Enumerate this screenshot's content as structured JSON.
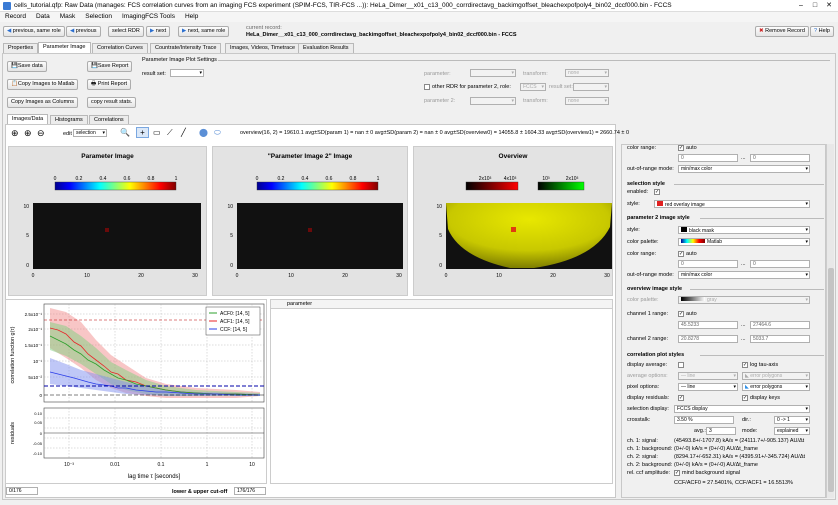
{
  "window": {
    "title": "cells_tutorial.qfp: Raw Data (manages: FCS correlation curves from an imaging FCS experiment (SPIM-FCS, TIR-FCS ...)): HeLa_Dimer__x01_c13_000_corrdirectavg_backimgoffset_bleachexpofpoly4_bin02_dccf000.bin - FCCS"
  },
  "menu": [
    "Record",
    "Data",
    "Mask",
    "Selection",
    "ImagingFCS Tools",
    "Help"
  ],
  "toolbar": {
    "prev_same_role": "previous, same role",
    "previous": "previous",
    "select_rdr": "select RDR",
    "next": "next",
    "next_same_role": "next, same role",
    "current_label": "current record:",
    "current_name": "HeLa_Dimer__x01_c13_000_corrdirectavg_backimgoffset_bleachexpofpoly4_bin02_dccf000.bin - FCCS",
    "remove": "Remove Record",
    "help": "Help"
  },
  "main_tabs": [
    "Properties",
    "Parameter Image",
    "Correlation Curves",
    "Countrate/Intensity Trace",
    "Images, Videos, Timetrace",
    "Evaluation Results"
  ],
  "left_buttons": {
    "save_data": "Save data",
    "save_report": "Save Report",
    "copy_matlab": "Copy Images to Matlab",
    "print_report": "Print Report",
    "copy_columns": "Copy Images as Columns",
    "copy_stats": "copy result stats."
  },
  "plot_settings": {
    "title": "Parameter Image Plot Settings",
    "result_set": "result set:",
    "parameter": "parameter:",
    "transform": "transform:",
    "transform_val": "none",
    "other_rdr": "other RDR for parameter 2, role:",
    "role_val": "FCCS",
    "result_set2": "result set:",
    "parameter2": "parameter 2:",
    "transform2": "transform:",
    "transform2_val": "none"
  },
  "sub_tabs": [
    "Images/Data",
    "Histograms",
    "Correlations"
  ],
  "zoom": {
    "edit_label": "edit",
    "edit_val": "selection"
  },
  "stats_line": "overview(16, 2) = 19610.1  avg±SD(param 1) = nan ± 0  avg±SD(param 2) = nan ± 0     avg±SD(overview0) = 14055.8 ± 1604.33  avg±SD(overview1) = 2660.74 ± 0",
  "images": {
    "p1": {
      "title": "Parameter Image",
      "ticks": [
        "0",
        "0.2",
        "0.4",
        "0.6",
        "0.8",
        "1"
      ]
    },
    "p2": {
      "title": "\"Parameter Image 2\" Image",
      "ticks": [
        "0",
        "0.2",
        "0.4",
        "0.6",
        "0.8",
        "1"
      ]
    },
    "ov": {
      "title": "Overview",
      "bar1": [
        "2x10³",
        "4x10³"
      ],
      "bar2": [
        "10³",
        "2x10³"
      ]
    },
    "xticks": [
      "0",
      "10",
      "20",
      "30"
    ],
    "yticks": [
      "10",
      "5",
      "0"
    ]
  },
  "right_panel": {
    "color_range": "color range:",
    "auto": "auto",
    "cr_min": "0",
    "cr_max": "0",
    "oor_mode": "out-of-range mode:",
    "oor_val": "min/max color",
    "sel_style": "selection style",
    "enabled": "enabled:",
    "style": "style:",
    "style_val": "red overlay image",
    "p2_style": "parameter 2 image style",
    "p2_style_val": "black mask",
    "palette": "color palette:",
    "palette_val": "Matlab",
    "p2_cr": "color range:",
    "p2_auto": "auto",
    "p2_min": "0",
    "p2_max": "0",
    "p2_oor": "out-of-range mode:",
    "p2_oor_val": "min/max color",
    "ov_style": "overview image style",
    "ov_palette": "color palette:",
    "ov_palette_val": "gray",
    "ch1": "channel 1 range:",
    "ch1_auto": "auto",
    "ch1_min": "45.5233",
    "ch1_max": "27464.6",
    "ch2": "channel 2 range:",
    "ch2_min": "20.8278",
    "ch2_max": "5033.7",
    "corr_style": "correlation plot styles",
    "disp_avg": "display average:",
    "log_tau": "log tau-axis",
    "avg_opts": "average options:",
    "avg_line": "line",
    "avg_err": "error polygons",
    "pix_opts": "pixel options:",
    "pix_line": "line",
    "pix_err": "error polygons",
    "disp_resid": "display residuals:",
    "disp_keys": "display keys",
    "sel_disp": "selection display:",
    "sel_disp_val": "FCCS display",
    "crosstalk": "crosstalk:",
    "crosstalk_val": "3.50 %",
    "dir": "dir.:",
    "dir_val": "0 -> 1",
    "avg": "avg.:",
    "avg_val": "3",
    "mode": "mode:",
    "mode_val": "explained",
    "ch1_sig": "ch. 1: signal:",
    "ch1_sig_val": "(45493.8+/-1707.8) kA/s = (24111.7+/-905.137) AU/Δt",
    "ch1_bg": "ch. 1: background:",
    "ch1_bg_val": "(0+/-0) kA/s = (0+/-0) AU/Δt_frame",
    "ch2_sig": "ch. 2: signal:",
    "ch2_sig_val": "(8294.17+/-652.31) kA/s = (4395.91+/-345.724) AU/Δt",
    "ch2_bg": "ch. 2: background:",
    "ch2_bg_val": "(0+/-0) kA/s = (0+/-0) AU/Δt_frame",
    "rel_ccf": "rel. ccf amplitude:",
    "mind_bg": "mind background signal",
    "ccf_line": "CCF/ACF0 = 27.5401%,  CCF/ACF1 = 16.5513%"
  },
  "corr_plot": {
    "ylabel": "correlation function g(τ)",
    "xlabel": "lag time  τ [seconds]",
    "resid_label": "residuals",
    "yticks": [
      "2.5x10⁻¹",
      "2x10⁻¹",
      "1.5x10⁻¹",
      "10⁻¹",
      "5x10⁻²",
      "0"
    ],
    "xticks": [
      "10⁻³",
      "0.01",
      "0.1",
      "1",
      "10"
    ],
    "rticks": [
      "0.10",
      "0.05",
      "0",
      "-0.05",
      "-0.10"
    ],
    "legend": [
      "ACF0: [14, 5]",
      "ACF1: [14, 5]",
      "CCF: [14, 5]"
    ],
    "colors": [
      "#2ca02c",
      "#e8262a",
      "#2a3ce8"
    ]
  },
  "table": {
    "header": "parameter"
  },
  "bottom": {
    "left_val": "0/176",
    "cutoff": "lower & upper cut-off",
    "right_val": "176/176"
  }
}
